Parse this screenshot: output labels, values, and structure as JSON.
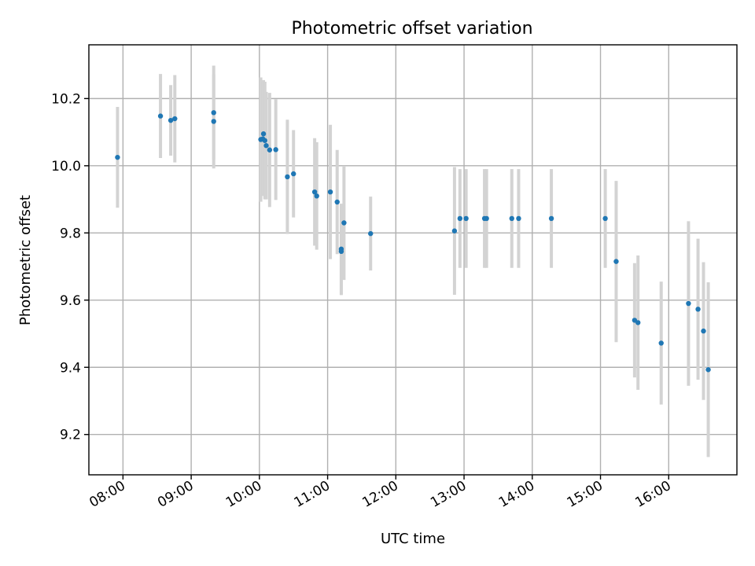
{
  "chart_data": {
    "type": "scatter",
    "title": "Photometric offset variation",
    "xlabel": "UTC time",
    "ylabel": "Photometric offset",
    "x_unit": "UTC hour",
    "xlim": [
      7.5,
      17.0
    ],
    "ylim": [
      9.08,
      10.36
    ],
    "xticks": [
      8,
      9,
      10,
      11,
      12,
      13,
      14,
      15,
      16
    ],
    "xtick_labels": [
      "08:00",
      "09:00",
      "10:00",
      "11:00",
      "12:00",
      "13:00",
      "14:00",
      "15:00",
      "16:00"
    ],
    "yticks": [
      9.2,
      9.4,
      9.6,
      9.8,
      10.0,
      10.2
    ],
    "ytick_labels": [
      "9.2",
      "9.4",
      "9.6",
      "9.8",
      "10.0",
      "10.2"
    ],
    "grid": true,
    "marker_color": "#1f77b4",
    "errorbar_color": "#d3d3d3",
    "series": [
      {
        "points": [
          {
            "x": 7.92,
            "y": 10.025,
            "err": 0.15
          },
          {
            "x": 8.55,
            "y": 10.148,
            "err": 0.125
          },
          {
            "x": 8.7,
            "y": 10.135,
            "err": 0.105
          },
          {
            "x": 8.76,
            "y": 10.14,
            "err": 0.13
          },
          {
            "x": 9.33,
            "y": 10.158,
            "err": 0.14
          },
          {
            "x": 9.33,
            "y": 10.132,
            "err": 0.14
          },
          {
            "x": 10.02,
            "y": 10.078,
            "err": 0.185
          },
          {
            "x": 10.05,
            "y": 10.08,
            "err": 0.17
          },
          {
            "x": 10.06,
            "y": 10.095,
            "err": 0.16
          },
          {
            "x": 10.08,
            "y": 10.075,
            "err": 0.175
          },
          {
            "x": 10.1,
            "y": 10.06,
            "err": 0.16
          },
          {
            "x": 10.15,
            "y": 10.047,
            "err": 0.17
          },
          {
            "x": 10.24,
            "y": 10.048,
            "err": 0.15
          },
          {
            "x": 10.41,
            "y": 9.967,
            "err": 0.17
          },
          {
            "x": 10.5,
            "y": 9.976,
            "err": 0.13
          },
          {
            "x": 10.81,
            "y": 9.922,
            "err": 0.16
          },
          {
            "x": 10.84,
            "y": 9.91,
            "err": 0.16
          },
          {
            "x": 11.04,
            "y": 9.922,
            "err": 0.2
          },
          {
            "x": 11.14,
            "y": 9.892,
            "err": 0.155
          },
          {
            "x": 11.2,
            "y": 9.752,
            "err": 0.135
          },
          {
            "x": 11.2,
            "y": 9.745,
            "err": 0.13
          },
          {
            "x": 11.24,
            "y": 9.83,
            "err": 0.17
          },
          {
            "x": 11.63,
            "y": 9.798,
            "err": 0.11
          },
          {
            "x": 12.86,
            "y": 9.806,
            "err": 0.19
          },
          {
            "x": 12.94,
            "y": 9.843,
            "err": 0.147
          },
          {
            "x": 13.03,
            "y": 9.843,
            "err": 0.147
          },
          {
            "x": 13.3,
            "y": 9.843,
            "err": 0.147
          },
          {
            "x": 13.33,
            "y": 9.843,
            "err": 0.147
          },
          {
            "x": 13.7,
            "y": 9.843,
            "err": 0.147
          },
          {
            "x": 13.8,
            "y": 9.843,
            "err": 0.147
          },
          {
            "x": 14.28,
            "y": 9.843,
            "err": 0.147
          },
          {
            "x": 15.07,
            "y": 9.843,
            "err": 0.147
          },
          {
            "x": 15.23,
            "y": 9.715,
            "err": 0.24
          },
          {
            "x": 15.5,
            "y": 9.54,
            "err": 0.17
          },
          {
            "x": 15.55,
            "y": 9.533,
            "err": 0.2
          },
          {
            "x": 15.89,
            "y": 9.472,
            "err": 0.183
          },
          {
            "x": 16.29,
            "y": 9.59,
            "err": 0.245
          },
          {
            "x": 16.43,
            "y": 9.573,
            "err": 0.21
          },
          {
            "x": 16.51,
            "y": 9.508,
            "err": 0.205
          },
          {
            "x": 16.58,
            "y": 9.393,
            "err": 0.26
          }
        ]
      }
    ]
  }
}
